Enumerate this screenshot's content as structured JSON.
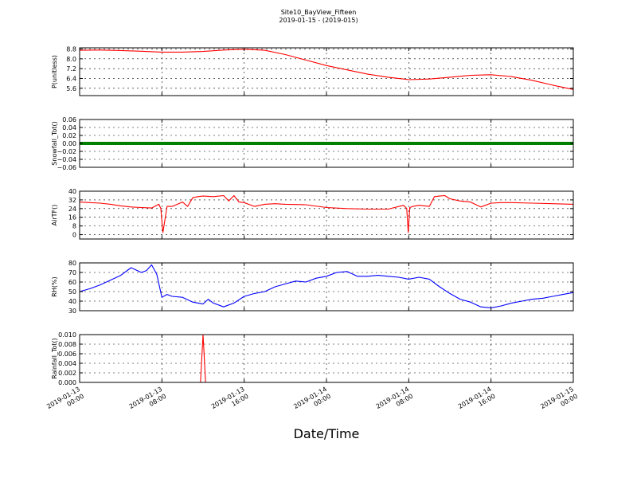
{
  "page": {
    "title": "Site10_BayView_Fifteen",
    "subtitle": "2019-01-15 - (2019-015)",
    "xlabel": "Date/Time"
  },
  "chart_data": [
    {
      "type": "line",
      "ylabel": "P(unitless)",
      "color": "#ff0000",
      "ylim": [
        5.0,
        8.9
      ],
      "yticks": [
        5.6,
        6.4,
        7.2,
        8.0,
        8.8
      ],
      "ytick_labels": [
        "5.6",
        "6.4",
        "7.2",
        "8.0",
        "8.8"
      ],
      "x": [
        0,
        2,
        4,
        6,
        8,
        10,
        12,
        14,
        16,
        18,
        20,
        22,
        24,
        26,
        28,
        30,
        32,
        34,
        36,
        38,
        40,
        42,
        44,
        46,
        48
      ],
      "values": [
        8.7,
        8.72,
        8.68,
        8.62,
        8.55,
        8.55,
        8.6,
        8.72,
        8.78,
        8.7,
        8.35,
        7.9,
        7.45,
        7.1,
        6.75,
        6.5,
        6.3,
        6.35,
        6.5,
        6.65,
        6.7,
        6.55,
        6.25,
        5.85,
        5.5
      ]
    },
    {
      "type": "line",
      "ylabel": "Snowfall_Tot()",
      "color": "#008000",
      "ylim": [
        -0.06,
        0.06
      ],
      "yticks": [
        -0.06,
        -0.04,
        -0.02,
        0.0,
        0.02,
        0.04,
        0.06
      ],
      "ytick_labels": [
        "−0.06",
        "−0.04",
        "−0.02",
        "0.00",
        "0.02",
        "0.04",
        "0.06"
      ],
      "x": [
        0,
        48
      ],
      "values": [
        0,
        0
      ],
      "thick": true
    },
    {
      "type": "line",
      "ylabel": "AirTF()",
      "color": "#ff0000",
      "ylim": [
        -4,
        40
      ],
      "yticks": [
        0,
        8,
        16,
        24,
        32,
        40
      ],
      "ytick_labels": [
        "0",
        "8",
        "16",
        "24",
        "32",
        "40"
      ],
      "x": [
        0,
        1,
        2,
        3,
        4,
        5,
        6,
        7,
        7.7,
        7.9,
        8.1,
        8.5,
        9,
        10,
        10.5,
        11,
        11.5,
        12,
        13,
        14,
        14.5,
        15,
        15.5,
        16,
        17,
        18,
        19,
        20,
        22,
        24,
        26,
        28,
        30,
        31.5,
        31.8,
        31.95,
        32.1,
        32.4,
        33,
        34,
        34.5,
        35,
        35.5,
        36,
        37,
        38,
        39,
        40,
        41,
        42,
        44,
        46,
        48
      ],
      "values": [
        30,
        29.5,
        29,
        28,
        26.5,
        25.5,
        25,
        24.5,
        28,
        24,
        2,
        26,
        26,
        30,
        26,
        34,
        35,
        35.5,
        35,
        36,
        31,
        36,
        30,
        29.5,
        26,
        28,
        28.5,
        28,
        27.5,
        25,
        24,
        23.5,
        23.5,
        27,
        24,
        2,
        25,
        26,
        27,
        26,
        35,
        35.5,
        36,
        33,
        31,
        30,
        25.5,
        29,
        29.5,
        29.5,
        29,
        28.5,
        28
      ]
    },
    {
      "type": "line",
      "ylabel": "RH(%)",
      "color": "#0000ff",
      "ylim": [
        30,
        80
      ],
      "yticks": [
        30,
        40,
        50,
        60,
        70,
        80
      ],
      "ytick_labels": [
        "30",
        "40",
        "50",
        "60",
        "70",
        "80"
      ],
      "x": [
        0,
        1,
        2,
        3,
        4,
        5,
        6,
        6.5,
        7,
        7.5,
        8,
        8.5,
        9,
        10,
        11,
        12,
        12.5,
        13,
        14,
        15,
        16,
        17,
        18,
        19,
        20,
        21,
        22,
        23,
        24,
        25,
        26,
        27,
        28,
        29,
        30,
        31,
        32,
        33,
        34,
        35,
        36,
        37,
        38,
        39,
        40,
        41,
        42,
        43,
        44,
        45,
        46,
        47,
        48
      ],
      "values": [
        50,
        53,
        57,
        62,
        67,
        75,
        70,
        72,
        78,
        68,
        44,
        47,
        45,
        44,
        39,
        37,
        42,
        38,
        34,
        38,
        45,
        48,
        50,
        55,
        58,
        61,
        60,
        64,
        66,
        70,
        71,
        66,
        66,
        67,
        66,
        65,
        63,
        65,
        63,
        55,
        48,
        42,
        39,
        34,
        33,
        35,
        38,
        40,
        42,
        43,
        45,
        47,
        49
      ]
    },
    {
      "type": "line",
      "ylabel": "Rainfall_Tot()",
      "color": "#ff0000",
      "ylim": [
        0,
        0.01
      ],
      "yticks": [
        0.0,
        0.002,
        0.004,
        0.006,
        0.008,
        0.01
      ],
      "ytick_labels": [
        "0.000",
        "0.002",
        "0.004",
        "0.006",
        "0.008",
        "0.010"
      ],
      "x": [
        0,
        11.75,
        12,
        12.25,
        48
      ],
      "values": [
        0,
        0,
        0.01,
        0,
        0
      ]
    }
  ],
  "x_axis": {
    "ticks": [
      0,
      8,
      16,
      24,
      32,
      40,
      48
    ],
    "tick_labels": [
      [
        "2019-01-13",
        "00:00"
      ],
      [
        "2019-01-13",
        "08:00"
      ],
      [
        "2019-01-13",
        "16:00"
      ],
      [
        "2019-01-14",
        "00:00"
      ],
      [
        "2019-01-14",
        "08:00"
      ],
      [
        "2019-01-14",
        "16:00"
      ],
      [
        "2019-01-15",
        "00:00"
      ]
    ]
  }
}
